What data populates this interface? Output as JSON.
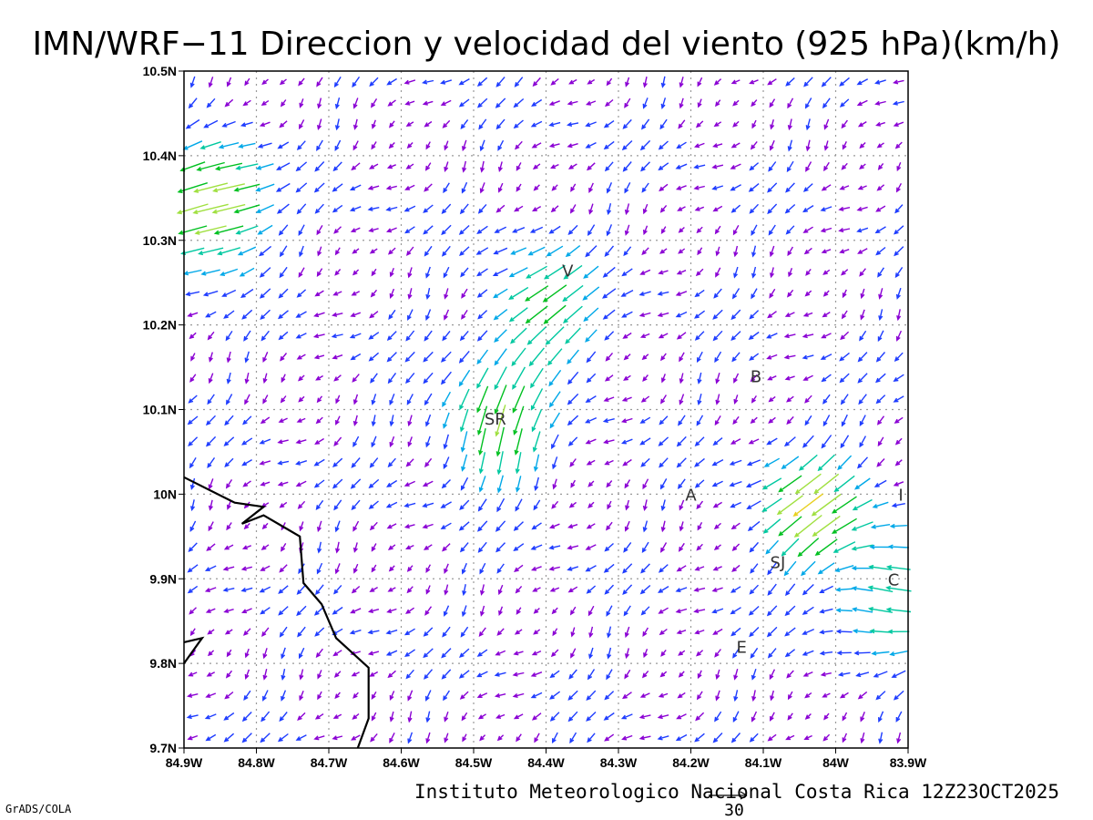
{
  "title": "IMN/WRF−11 Direccion y velocidad del viento (925 hPa)(km/h)",
  "footer": "Instituto Meteorologico Nacional Costa Rica 12Z23OCT2025",
  "credit": "GrADS/COLA",
  "reference_vector": {
    "label": "30",
    "speed_kmh": 30
  },
  "map": {
    "lon_range": [
      -84.9,
      -83.9
    ],
    "lat_range": [
      9.7,
      10.5
    ],
    "grid": "dotted"
  },
  "x_tick_labels": [
    "84.9W",
    "84.8W",
    "84.7W",
    "84.6W",
    "84.5W",
    "84.4W",
    "84.3W",
    "84.2W",
    "84.1W",
    "84W",
    "83.9W"
  ],
  "y_tick_labels": [
    "10.5N",
    "10.4N",
    "10.3N",
    "10.2N",
    "10.1N",
    "10N",
    "9.9N",
    "9.8N",
    "9.7N"
  ],
  "places": [
    {
      "label": "V",
      "lon": -84.37,
      "lat": 10.265
    },
    {
      "label": "SR",
      "lon": -84.47,
      "lat": 10.09
    },
    {
      "label": "B",
      "lon": -84.11,
      "lat": 10.14
    },
    {
      "label": "A",
      "lon": -84.2,
      "lat": 10.0
    },
    {
      "label": "I",
      "lon": -83.91,
      "lat": 10.0
    },
    {
      "label": "SJ",
      "lon": -84.08,
      "lat": 9.92
    },
    {
      "label": "C",
      "lon": -83.92,
      "lat": 9.9
    },
    {
      "label": "E",
      "lon": -84.13,
      "lat": 9.82
    }
  ],
  "coastline": [
    [
      [
        -84.9,
        10.02
      ],
      [
        -84.83,
        9.99
      ],
      [
        -84.79,
        9.985
      ],
      [
        -84.82,
        9.965
      ],
      [
        -84.79,
        9.975
      ],
      [
        -84.76,
        9.96
      ],
      [
        -84.74,
        9.95
      ],
      [
        -84.735,
        9.895
      ],
      [
        -84.71,
        9.87
      ],
      [
        -84.69,
        9.83
      ],
      [
        -84.645,
        9.795
      ],
      [
        -84.645,
        9.735
      ],
      [
        -84.66,
        9.7
      ]
    ],
    [
      [
        -84.9,
        9.8
      ],
      [
        -84.875,
        9.83
      ],
      [
        -84.9,
        9.825
      ]
    ]
  ],
  "wind_palette": [
    "#8a00d4",
    "#1e3cff",
    "#00a8e8",
    "#00c8a0",
    "#00c020",
    "#a0e040",
    "#e8d020",
    "#e89020"
  ],
  "wind_speed_bins_kmh": [
    5,
    10,
    15,
    20,
    25,
    30,
    35
  ],
  "wind_field": {
    "grid_spacing_deg": 0.025,
    "centers": [
      {
        "name": "upper-left-inflow",
        "lon": -84.86,
        "lat": 10.34,
        "u": -28,
        "v": -6
      },
      {
        "name": "san-ramon-convergence",
        "lon": -84.47,
        "lat": 10.09,
        "u": -4,
        "v": -22
      },
      {
        "name": "central-valley-east",
        "lon": -84.03,
        "lat": 9.98,
        "u": -20,
        "v": -14
      },
      {
        "name": "cartago-east",
        "lon": -83.92,
        "lat": 9.88,
        "u": -18,
        "v": 6
      },
      {
        "name": "volcano-north",
        "lon": -84.4,
        "lat": 10.22,
        "u": -16,
        "v": -10
      }
    ]
  }
}
